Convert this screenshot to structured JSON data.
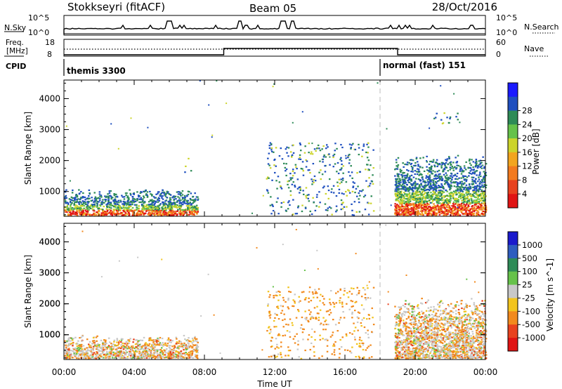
{
  "header": {
    "station": "Stokkseyri (fitACF)",
    "beam": "Beam 05",
    "date": "28/Oct/2016"
  },
  "top_panels": {
    "nsky_label": "N.Sky",
    "nsearch_label": "N.Search",
    "exp_hi": "10^5",
    "exp_lo": "10^0",
    "freq_label_1": "Freq.",
    "freq_label_2": "[MHz]",
    "freq_ticks": [
      "18",
      "8"
    ],
    "nave_label": "Nave",
    "nave_ticks": [
      "60",
      "0"
    ],
    "cpid_label": "CPID",
    "cpid_left": "themis 3300",
    "cpid_right": "normal (fast) 151"
  },
  "chart_data": [
    {
      "type": "heatmap",
      "name": "power",
      "ylabel": "Slant Range [km]",
      "yticks": [
        "1000",
        "2000",
        "3000",
        "4000"
      ],
      "ylim": [
        200,
        4600
      ],
      "xlim": [
        0,
        24
      ],
      "colorbar": {
        "label": "Power [dB]",
        "ticks": [
          "4",
          "8",
          "12",
          "16",
          "20",
          "24",
          "28"
        ],
        "colors": [
          "#1a1aff",
          "#1f4fbf",
          "#2e8b57",
          "#66c24a",
          "#ccd42b",
          "#f2a51e",
          "#f27a1e",
          "#e8421f",
          "#e01414"
        ]
      },
      "regions": [
        {
          "x": [
            0,
            7.6
          ],
          "y": [
            250,
            1100
          ],
          "intensity": "high"
        },
        {
          "x": [
            6.8,
            7.2
          ],
          "y": [
            1600,
            2100
          ],
          "intensity": "low"
        },
        {
          "x": [
            11.5,
            17.6
          ],
          "y": [
            250,
            2600
          ],
          "intensity": "low"
        },
        {
          "x": [
            18.8,
            24
          ],
          "y": [
            250,
            2200
          ],
          "intensity": "high"
        },
        {
          "x": [
            21,
            22.5
          ],
          "y": [
            3200,
            3600
          ],
          "intensity": "medium"
        }
      ]
    },
    {
      "type": "heatmap",
      "name": "velocity",
      "ylabel": "Slant Range [km]",
      "yticks": [
        "1000",
        "2000",
        "3000",
        "4000"
      ],
      "ylim": [
        200,
        4600
      ],
      "xlim": [
        0,
        24
      ],
      "xlabel": "Time UT",
      "xticks": [
        "00:00",
        "04:00",
        "08:00",
        "12:00",
        "16:00",
        "20:00",
        "00:00"
      ],
      "colorbar": {
        "label": "Velocity [m s^-1]",
        "ticks": [
          "1000",
          "500",
          "100",
          "25",
          "-25",
          "-100",
          "-500",
          "-1000"
        ],
        "colors": [
          "#1a1acc",
          "#2e5dbf",
          "#2e8b57",
          "#66c24a",
          "#c8c8c8",
          "#f2c41e",
          "#f28a1e",
          "#e8421f",
          "#e01414"
        ]
      },
      "regions": [
        {
          "x": [
            0,
            7.6
          ],
          "y": [
            250,
            1000
          ],
          "value": "grey/orange"
        },
        {
          "x": [
            11.5,
            17.6
          ],
          "y": [
            250,
            2600
          ],
          "value": "orange"
        },
        {
          "x": [
            18.8,
            24
          ],
          "y": [
            250,
            2200
          ],
          "value": "grey/orange"
        }
      ]
    }
  ]
}
